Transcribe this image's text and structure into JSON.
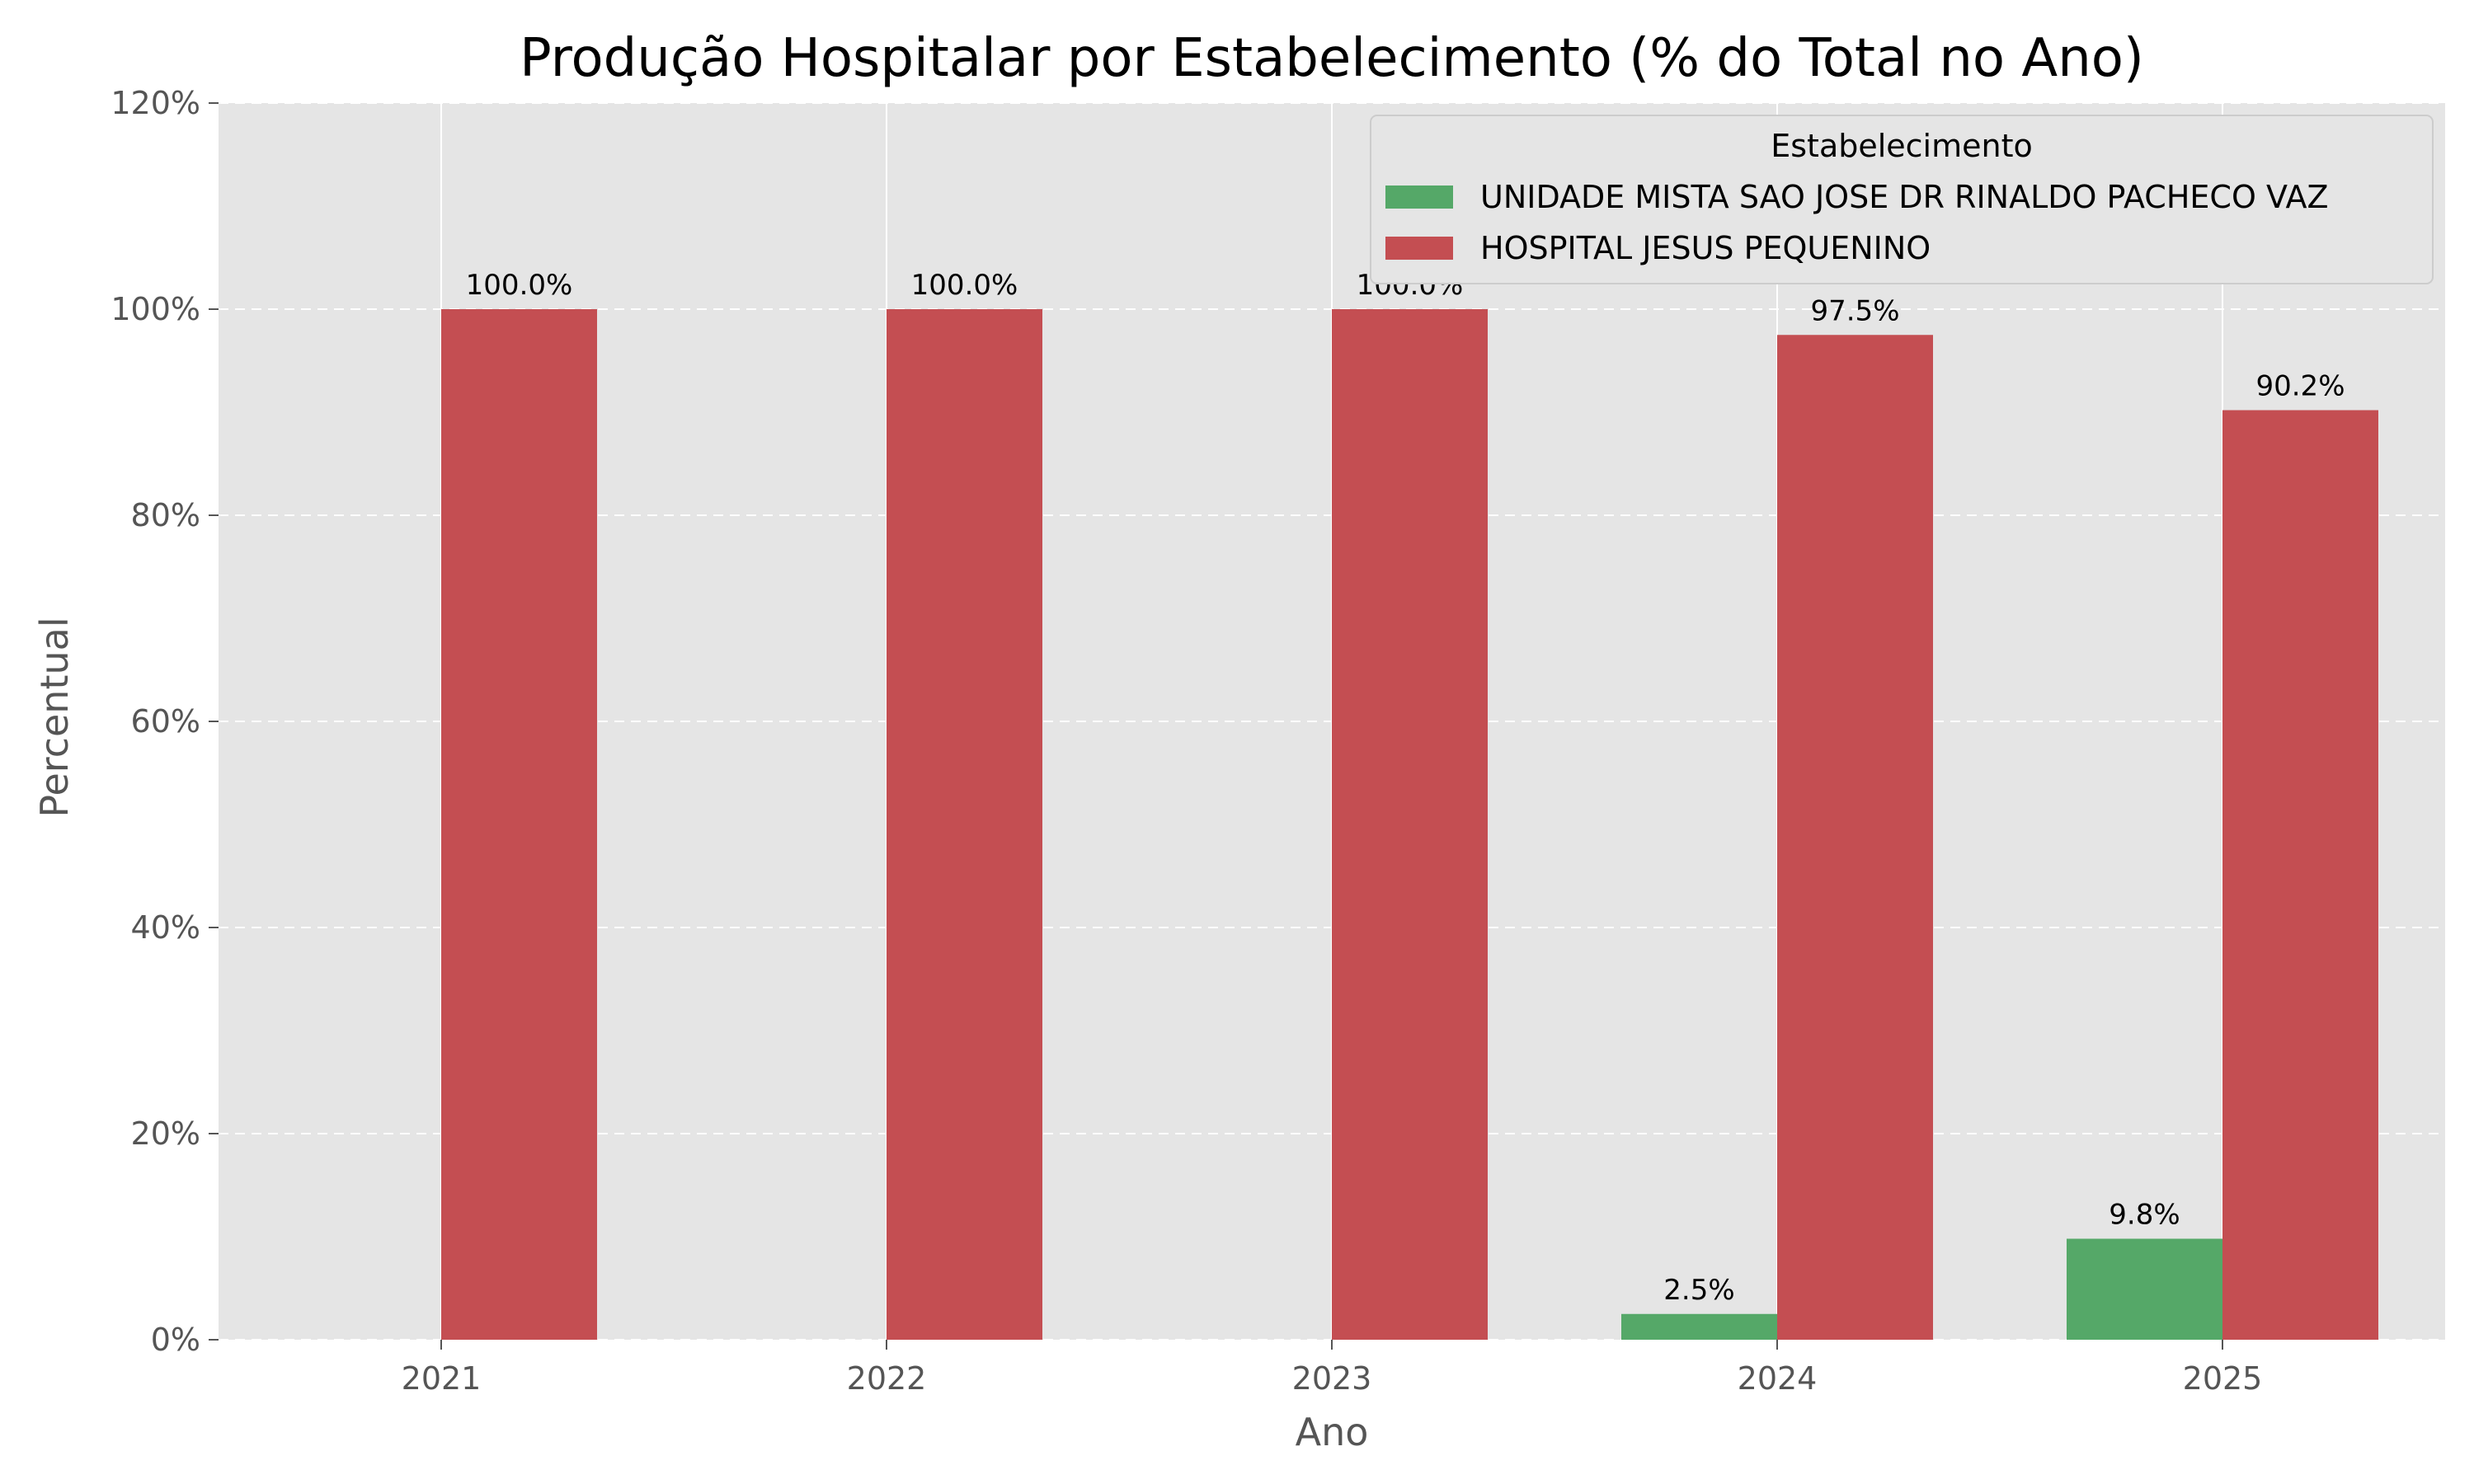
{
  "chart_data": {
    "type": "bar",
    "title": "Produção Hospitalar por Estabelecimento (% do Total no Ano)",
    "xlabel": "Ano",
    "ylabel": "Percentual",
    "categories": [
      "2021",
      "2022",
      "2023",
      "2024",
      "2025"
    ],
    "ylim": [
      0,
      120
    ],
    "yticks": [
      "0%",
      "20%",
      "40%",
      "60%",
      "80%",
      "100%",
      "120%"
    ],
    "grid": true,
    "legend_title": "Estabelecimento",
    "legend_position": "top-right",
    "series": [
      {
        "name": "UNIDADE MISTA SAO JOSE DR RINALDO PACHECO VAZ",
        "color": "#55a868",
        "values": [
          0,
          0,
          0,
          2.5,
          9.8
        ],
        "labels": [
          "",
          "",
          "",
          "2.5%",
          "9.8%"
        ]
      },
      {
        "name": "HOSPITAL JESUS PEQUENINO",
        "color": "#c44e52",
        "values": [
          100,
          100,
          100,
          97.5,
          90.2
        ],
        "labels": [
          "100.0%",
          "100.0%",
          "100.0%",
          "97.5%",
          "90.2%"
        ]
      }
    ]
  }
}
